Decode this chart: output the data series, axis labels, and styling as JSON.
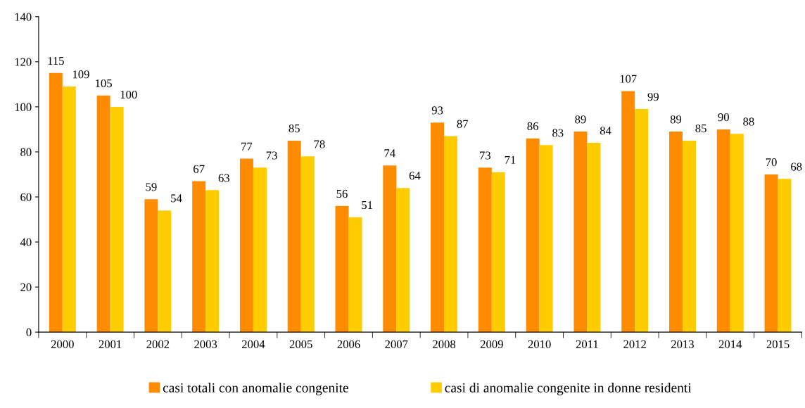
{
  "chart_data": {
    "type": "bar",
    "categories": [
      "2000",
      "2001",
      "2002",
      "2003",
      "2004",
      "2005",
      "2006",
      "2007",
      "2008",
      "2009",
      "2010",
      "2011",
      "2012",
      "2013",
      "2014",
      "2015"
    ],
    "series": [
      {
        "name": "casi totali con anomalie congenite",
        "color": "#ff8c00",
        "values": [
          115,
          105,
          59,
          67,
          77,
          85,
          56,
          74,
          93,
          73,
          86,
          89,
          107,
          89,
          90,
          70
        ]
      },
      {
        "name": "casi di anomalie congenite in donne residenti",
        "color": "#ffcc00",
        "values": [
          109,
          100,
          54,
          63,
          73,
          78,
          51,
          64,
          87,
          71,
          83,
          84,
          99,
          85,
          88,
          68
        ]
      }
    ],
    "ylim": [
      0,
      140
    ],
    "yticks": [
      0,
      20,
      40,
      60,
      80,
      100,
      120,
      140
    ],
    "data_labels": true,
    "grid": false,
    "legend": "bottom"
  }
}
